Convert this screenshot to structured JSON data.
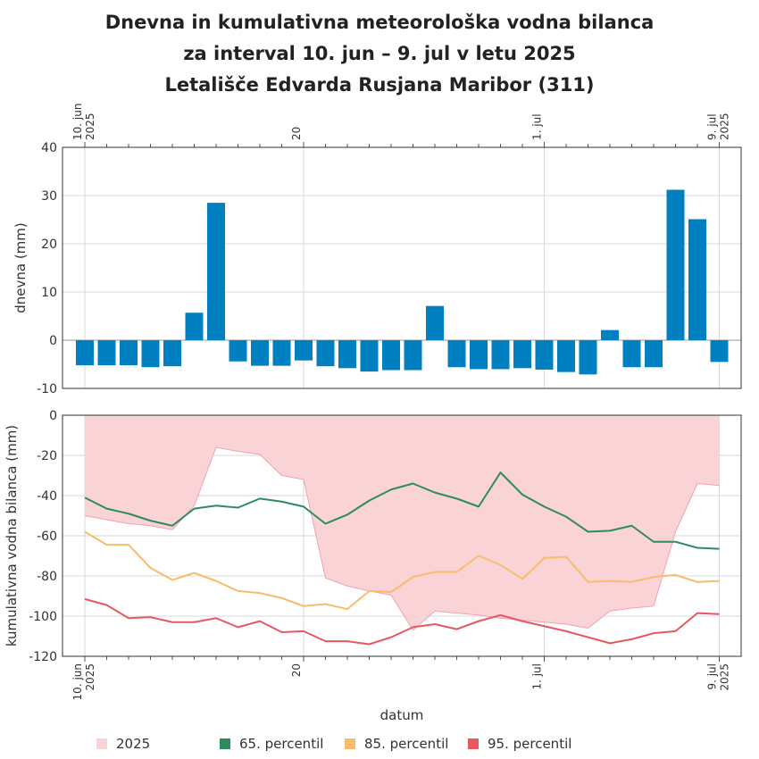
{
  "title": {
    "line1": "Dnevna in kumulativna meteorološka vodna bilanca",
    "line2": "za interval 10. jun – 9. jul v letu 2025",
    "line3": "Letališče Edvarda Rusjana Maribor (311)"
  },
  "colors": {
    "bar": "#0080c0",
    "band": "#f9d3d6",
    "band_line": "#f4a3ad",
    "p65": "#2f8a5e",
    "p85": "#f7bd6c",
    "p95": "#e85860",
    "grid": "#d8d8d8"
  },
  "chart_data": [
    {
      "type": "bar",
      "name": "dnevna",
      "ylabel": "dnevna (mm)",
      "ylim": [
        -10,
        40
      ],
      "yticks": [
        "40",
        "30",
        "20",
        "10",
        "0",
        "-10"
      ],
      "x_tick_labels": [
        {
          "day": 0,
          "line1": "10. jun",
          "line2": "2025"
        },
        {
          "day": 10,
          "line1": "20",
          "line2": ""
        },
        {
          "day": 21,
          "line1": "1. jul",
          "line2": ""
        },
        {
          "day": 29,
          "line1": "9. jul",
          "line2": "2025"
        }
      ],
      "dates": [
        "2025-06-10",
        "2025-06-11",
        "2025-06-12",
        "2025-06-13",
        "2025-06-14",
        "2025-06-15",
        "2025-06-16",
        "2025-06-17",
        "2025-06-18",
        "2025-06-19",
        "2025-06-20",
        "2025-06-21",
        "2025-06-22",
        "2025-06-23",
        "2025-06-24",
        "2025-06-25",
        "2025-06-26",
        "2025-06-27",
        "2025-06-28",
        "2025-06-29",
        "2025-06-30",
        "2025-07-01",
        "2025-07-02",
        "2025-07-03",
        "2025-07-04",
        "2025-07-05",
        "2025-07-06",
        "2025-07-07",
        "2025-07-08",
        "2025-07-09"
      ],
      "values": [
        -5.2,
        -5.2,
        -5.2,
        -5.6,
        -5.4,
        5.7,
        28.5,
        -4.4,
        -5.3,
        -5.3,
        -4.2,
        -5.4,
        -5.8,
        -6.5,
        -6.2,
        -6.2,
        7.1,
        -5.6,
        -6.0,
        -6.0,
        -5.8,
        -6.1,
        -6.6,
        -7.1,
        2.1,
        -5.6,
        -5.6,
        31.2,
        25.1,
        -4.5
      ]
    },
    {
      "type": "area",
      "name": "kumulativna",
      "ylabel": "kumulativna vodna bilanca (mm)",
      "xlabel": "datum",
      "ylim": [
        -120,
        0
      ],
      "yticks": [
        "0",
        "-20",
        "-40",
        "-60",
        "-80",
        "-100",
        "-120"
      ],
      "x_tick_labels": [
        {
          "day": 0,
          "line1": "10. jun",
          "line2": "2025"
        },
        {
          "day": 10,
          "line1": "20",
          "line2": ""
        },
        {
          "day": 21,
          "line1": "1. jul",
          "line2": ""
        },
        {
          "day": 29,
          "line1": "9. jul",
          "line2": "2025"
        }
      ],
      "series": [
        {
          "name": "2025",
          "values": [
            -50,
            -52,
            -54,
            -55,
            -57,
            -45,
            -16,
            -18,
            -19.5,
            -30,
            -32,
            -81,
            -85,
            -87.5,
            -89.5,
            -107,
            -97.5,
            -98.5,
            -99.5,
            -101,
            -102,
            -103,
            -104,
            -106,
            -97.5,
            -96,
            -95,
            -58,
            -34,
            -35
          ]
        },
        {
          "name": "65. percentil",
          "values": [
            -41,
            -46.5,
            -49,
            -52.5,
            -55,
            -46.5,
            -45,
            -46,
            -41.5,
            -43,
            -45.5,
            -54,
            -49.5,
            -42.5,
            -37,
            -34,
            -38.5,
            -41.5,
            -45.5,
            -28.5,
            -39.5,
            -45.5,
            -50.5,
            -58,
            -57.5,
            -55,
            -63,
            -63,
            -66,
            -66.5
          ]
        },
        {
          "name": "85. percentil",
          "values": [
            -58,
            -64.5,
            -64.5,
            -76,
            -82,
            -78.5,
            -82.5,
            -87.5,
            -88.5,
            -91,
            -95,
            -94,
            -96.5,
            -87.5,
            -88,
            -80.5,
            -78,
            -78,
            -70,
            -74.5,
            -81.5,
            -71,
            -70.5,
            -83,
            -82.5,
            -83,
            -80.5,
            -79.5,
            -83,
            -82.5
          ]
        },
        {
          "name": "95. percentil",
          "values": [
            -91.5,
            -94.5,
            -101,
            -100.5,
            -103,
            -103,
            -101,
            -105.5,
            -102.5,
            -108,
            -107.5,
            -112.5,
            -112.5,
            -114,
            -110.5,
            -105.5,
            -104,
            -106.5,
            -102.5,
            -99.5,
            -102.5,
            -105,
            -107.5,
            -110.5,
            -113.5,
            -111.5,
            -108.5,
            -107.5,
            -98.5,
            -99
          ]
        }
      ]
    }
  ],
  "legend": [
    {
      "label": "2025",
      "color": "#f9d3d6"
    },
    {
      "label": "65. percentil",
      "color": "#2f8a5e"
    },
    {
      "label": "85. percentil",
      "color": "#f7bd6c"
    },
    {
      "label": "95. percentil",
      "color": "#e85860"
    }
  ]
}
